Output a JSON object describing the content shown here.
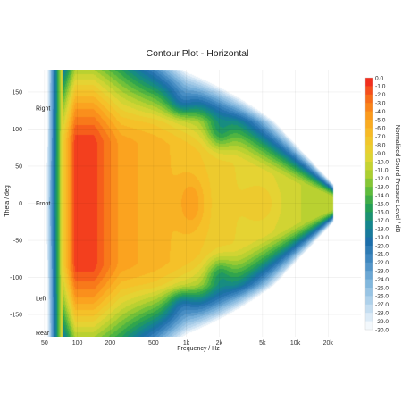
{
  "chart_data": {
    "type": "heatmap",
    "title": "Contour Plot - Horizontal",
    "xlabel": "Frequency / Hz",
    "ylabel": "Theta / deg",
    "x_scale": "log",
    "xlim": [
      35,
      40000
    ],
    "ylim": [
      -180,
      180
    ],
    "x_ticks": [
      {
        "value": 50,
        "label": "50"
      },
      {
        "value": 100,
        "label": "100"
      },
      {
        "value": 200,
        "label": "200"
      },
      {
        "value": 500,
        "label": "500"
      },
      {
        "value": 1000,
        "label": "1k"
      },
      {
        "value": 2000,
        "label": "2k"
      },
      {
        "value": 5000,
        "label": "5k"
      },
      {
        "value": 10000,
        "label": "10k"
      },
      {
        "value": 20000,
        "label": "20k"
      }
    ],
    "y_ticks": [
      150,
      100,
      50,
      0,
      -50,
      -100,
      -150
    ],
    "angle_annotations": [
      {
        "theta": 128,
        "label": "Right"
      },
      {
        "theta": 0,
        "label": "Front"
      },
      {
        "theta": -128,
        "label": "Left"
      },
      {
        "theta": -180,
        "label": "Rear"
      }
    ],
    "colorbar": {
      "label": "Normalized Sound Pressure Level / dB",
      "min": -30.0,
      "max": 0.0,
      "labels": [
        "0.0",
        "-1.0",
        "-2.0",
        "-3.0",
        "-4.0",
        "-5.0",
        "-6.0",
        "-7.0",
        "-8.0",
        "-9.0",
        "-10.0",
        "-11.0",
        "-12.0",
        "-13.0",
        "-14.0",
        "-15.0",
        "-16.0",
        "-17.0",
        "-18.0",
        "-19.0",
        "-20.0",
        "-21.0",
        "-22.0",
        "-23.0",
        "-24.0",
        "-25.0",
        "-26.0",
        "-27.0",
        "-28.0",
        "-29.0",
        "-30.0"
      ]
    },
    "grid": true
  }
}
